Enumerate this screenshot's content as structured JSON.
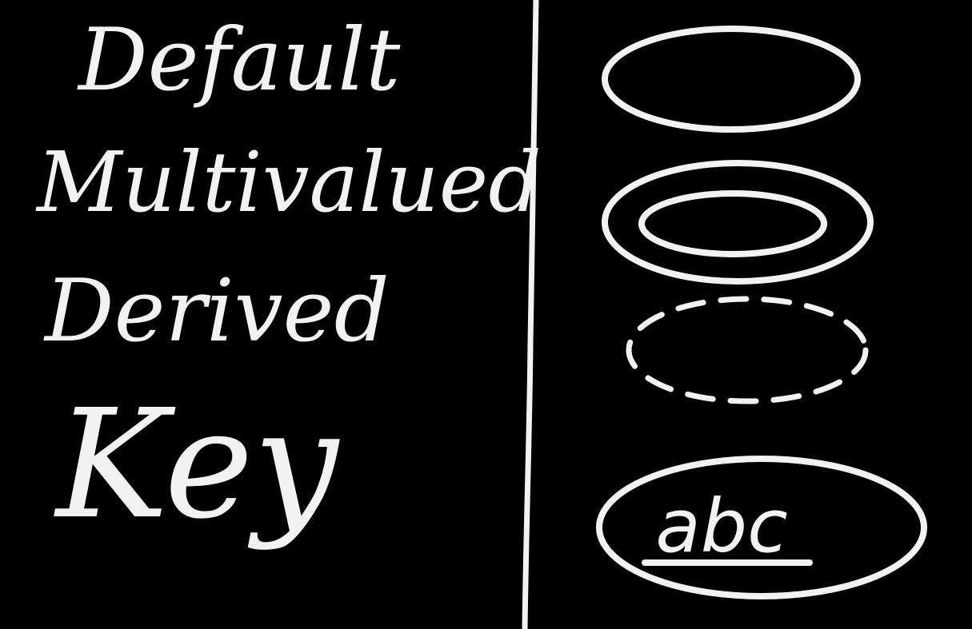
{
  "labels": {
    "default": "Default",
    "multivalued": "Multivalued",
    "derived": "Derived",
    "key": "Key"
  },
  "key_symbol_text": "abc",
  "colors": {
    "background": "#000000",
    "ink": "#f2f2f2"
  }
}
